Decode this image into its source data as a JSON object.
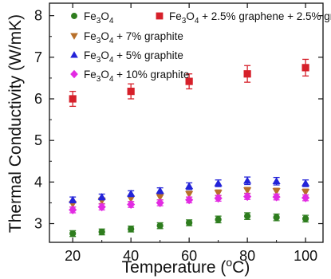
{
  "chart_data": {
    "type": "scatter",
    "xlabel": "Temperature (°C)",
    "xlabel_parts": {
      "main": "Temperature (",
      "sup": "o",
      "end": "C)"
    },
    "ylabel": "Thermal Conductivity (W/mK)",
    "xlim": [
      12,
      106
    ],
    "ylim": [
      2.55,
      8.3
    ],
    "x_ticks": [
      20,
      40,
      60,
      80,
      100
    ],
    "y_ticks": [
      3,
      4,
      5,
      6,
      7,
      8
    ],
    "legend_position": "top",
    "series": [
      {
        "name": "Fe3O4",
        "name_parts": [
          [
            "Fe",
            ""
          ],
          [
            "3",
            "sub"
          ],
          [
            "O",
            ""
          ],
          [
            "4",
            "sub"
          ]
        ],
        "marker": "circle",
        "color": "#2e7d1e",
        "x": [
          20,
          30,
          40,
          50,
          60,
          70,
          80,
          90,
          100
        ],
        "y": [
          2.76,
          2.8,
          2.87,
          2.95,
          3.02,
          3.1,
          3.18,
          3.15,
          3.12
        ],
        "err": [
          0.07,
          0.07,
          0.07,
          0.07,
          0.07,
          0.08,
          0.08,
          0.08,
          0.08
        ]
      },
      {
        "name": "Fe3O4 + 2.5% graphene + 2.5% graphite",
        "name_parts": [
          [
            "Fe",
            ""
          ],
          [
            "3",
            "sub"
          ],
          [
            "O",
            ""
          ],
          [
            "4",
            "sub"
          ],
          [
            " + 2.5% graphene + 2.5% graphite",
            ""
          ]
        ],
        "marker": "square",
        "color": "#d6202a",
        "x": [
          20,
          40,
          60,
          80,
          100
        ],
        "y": [
          6.0,
          6.18,
          6.42,
          6.6,
          6.75
        ],
        "err": [
          0.18,
          0.18,
          0.18,
          0.2,
          0.2
        ]
      },
      {
        "name": "Fe3O4 + 7% graphite",
        "name_parts": [
          [
            "Fe",
            ""
          ],
          [
            "3",
            "sub"
          ],
          [
            "O",
            ""
          ],
          [
            "4",
            "sub"
          ],
          [
            " + 7% graphite",
            ""
          ]
        ],
        "marker": "triangle-down",
        "color": "#b8702a",
        "x": [
          20,
          30,
          40,
          50,
          60,
          70,
          80,
          90,
          100
        ],
        "y": [
          3.47,
          3.55,
          3.6,
          3.64,
          3.71,
          3.74,
          3.8,
          3.78,
          3.76
        ],
        "err": [
          0.07,
          0.07,
          0.07,
          0.07,
          0.07,
          0.07,
          0.07,
          0.07,
          0.07
        ]
      },
      {
        "name": "Fe3O4 + 5% graphite",
        "name_parts": [
          [
            "Fe",
            ""
          ],
          [
            "3",
            "sub"
          ],
          [
            "O",
            ""
          ],
          [
            "4",
            "sub"
          ],
          [
            " + 5% graphite",
            ""
          ]
        ],
        "marker": "triangle-up",
        "color": "#2323d8",
        "x": [
          20,
          30,
          40,
          50,
          60,
          70,
          80,
          90,
          100
        ],
        "y": [
          3.57,
          3.64,
          3.72,
          3.79,
          3.9,
          3.97,
          4.03,
          4.02,
          3.97
        ],
        "err": [
          0.07,
          0.07,
          0.07,
          0.07,
          0.08,
          0.08,
          0.09,
          0.09,
          0.08
        ]
      },
      {
        "name": "Fe3O4 + 10% graphite",
        "name_parts": [
          [
            "Fe",
            ""
          ],
          [
            "3",
            "sub"
          ],
          [
            "O",
            ""
          ],
          [
            "4",
            "sub"
          ],
          [
            " + 10% graphite",
            ""
          ]
        ],
        "marker": "diamond",
        "color": "#e22be2",
        "x": [
          20,
          30,
          40,
          50,
          60,
          70,
          80,
          90,
          100
        ],
        "y": [
          3.33,
          3.4,
          3.46,
          3.5,
          3.57,
          3.61,
          3.65,
          3.64,
          3.62
        ],
        "err": [
          0.07,
          0.07,
          0.07,
          0.07,
          0.07,
          0.07,
          0.07,
          0.07,
          0.07
        ]
      }
    ]
  }
}
